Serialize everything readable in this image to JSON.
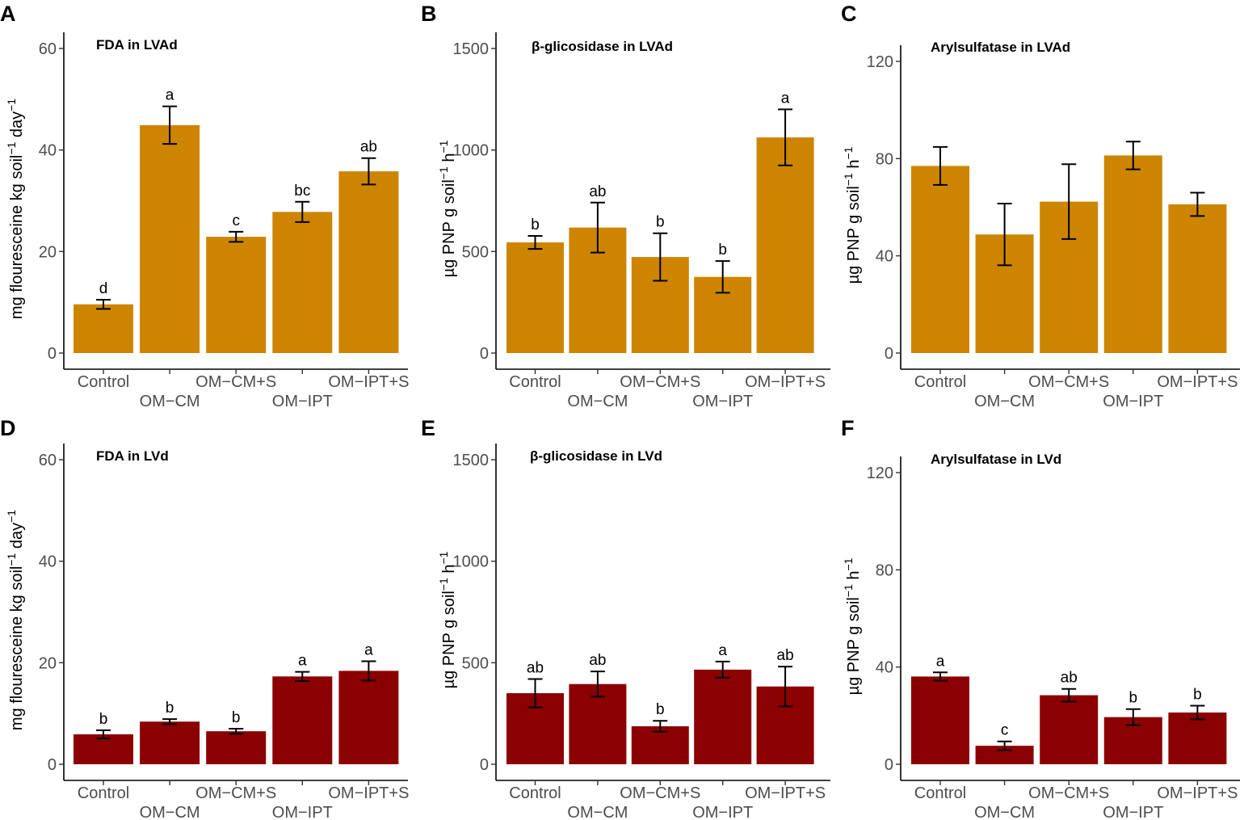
{
  "figure": {
    "colors": {
      "top_bars": "#CD8500",
      "bottom_bars": "#8B0000"
    }
  },
  "chart_data": [
    {
      "id": "A",
      "type": "bar",
      "panel_label": "A",
      "title": "FDA in LVAd",
      "ylabel": "mg flouresceine kg soil",
      "ylabel_sup1": "−1",
      "ylabel_mid": " day",
      "ylabel_sup2": "−1",
      "categories": [
        "Control",
        "OM−CM",
        "OM−CM+S",
        "OM−IPT",
        "OM−IPT+S"
      ],
      "values": [
        9.6,
        44.9,
        22.9,
        27.8,
        35.8
      ],
      "errors": [
        0.9,
        3.7,
        1.0,
        2.0,
        2.6
      ],
      "letters": [
        "d",
        "a",
        "c",
        "bc",
        "ab"
      ],
      "yticks": [
        0,
        20,
        40,
        60
      ],
      "ylim": [
        0,
        60
      ],
      "color": "#CD8500"
    },
    {
      "id": "B",
      "type": "bar",
      "panel_label": "B",
      "title": "β-glicosidase in LVAd",
      "ylabel": "µg PNP g soil",
      "ylabel_sup1": "−1",
      "ylabel_mid": " h",
      "ylabel_sup2": "−1",
      "categories": [
        "Control",
        "OM−CM",
        "OM−CM+S",
        "OM−IPT",
        "OM−IPT+S"
      ],
      "values": [
        545,
        618,
        473,
        375,
        1062
      ],
      "errors": [
        32,
        123,
        117,
        78,
        138
      ],
      "letters": [
        "b",
        "ab",
        "b",
        "b",
        "a"
      ],
      "yticks": [
        0,
        500,
        1000,
        1500
      ],
      "ylim": [
        0,
        1500
      ],
      "color": "#CD8500"
    },
    {
      "id": "C",
      "type": "bar",
      "panel_label": "C",
      "title": "Arylsulfatase in LVAd",
      "ylabel": "µg PNP g soil",
      "ylabel_sup1": "−1",
      "ylabel_mid": " h",
      "ylabel_sup2": "−1",
      "categories": [
        "Control",
        "OM−CM",
        "OM−CM+S",
        "OM−IPT",
        "OM−IPT+S"
      ],
      "values": [
        77,
        48.8,
        62.3,
        81.3,
        61.2
      ],
      "errors": [
        7.8,
        12.7,
        15.4,
        5.7,
        4.8
      ],
      "letters": [
        "",
        "",
        "",
        "",
        ""
      ],
      "yticks": [
        0,
        40,
        80,
        120
      ],
      "ylim": [
        0,
        120
      ],
      "color": "#CD8500"
    },
    {
      "id": "D",
      "type": "bar",
      "panel_label": "D",
      "title": "FDA in LVd",
      "ylabel": "mg flouresceine kg soil",
      "ylabel_sup1": "−1",
      "ylabel_mid": " day",
      "ylabel_sup2": "−1",
      "categories": [
        "Control",
        "OM−CM",
        "OM−CM+S",
        "OM−IPT",
        "OM−IPT+S"
      ],
      "values": [
        5.9,
        8.4,
        6.5,
        17.3,
        18.4
      ],
      "errors": [
        0.8,
        0.5,
        0.5,
        0.9,
        1.9
      ],
      "letters": [
        "b",
        "b",
        "b",
        "a",
        "a"
      ],
      "yticks": [
        0,
        20,
        40,
        60
      ],
      "ylim": [
        0,
        60
      ],
      "color": "#8B0000"
    },
    {
      "id": "E",
      "type": "bar",
      "panel_label": "E",
      "title": "β-glicosidase in LVd",
      "ylabel": "µg PNP g soil",
      "ylabel_sup1": "−1",
      "ylabel_mid": " h",
      "ylabel_sup2": "−1",
      "categories": [
        "Control",
        "OM−CM",
        "OM−CM+S",
        "OM−IPT",
        "OM−IPT+S"
      ],
      "values": [
        350,
        395,
        187,
        466,
        383
      ],
      "errors": [
        70,
        62,
        27,
        40,
        98
      ],
      "letters": [
        "ab",
        "ab",
        "b",
        "a",
        "ab"
      ],
      "yticks": [
        0,
        500,
        1000,
        1500
      ],
      "ylim": [
        0,
        1500
      ],
      "color": "#8B0000"
    },
    {
      "id": "F",
      "type": "bar",
      "panel_label": "F",
      "title": "Arylsulfatase in LVd",
      "ylabel": "µg PNP g soil",
      "ylabel_sup1": "−1",
      "ylabel_mid": " h",
      "ylabel_sup2": "−1",
      "categories": [
        "Control",
        "OM−CM",
        "OM−CM+S",
        "OM−IPT",
        "OM−IPT+S"
      ],
      "values": [
        36.1,
        7.6,
        28.4,
        19.4,
        21.3
      ],
      "errors": [
        1.7,
        1.8,
        2.6,
        3.3,
        2.8
      ],
      "letters": [
        "a",
        "c",
        "ab",
        "b",
        "b"
      ],
      "yticks": [
        0,
        40,
        80,
        120
      ],
      "ylim": [
        0,
        120
      ],
      "color": "#8B0000"
    }
  ]
}
